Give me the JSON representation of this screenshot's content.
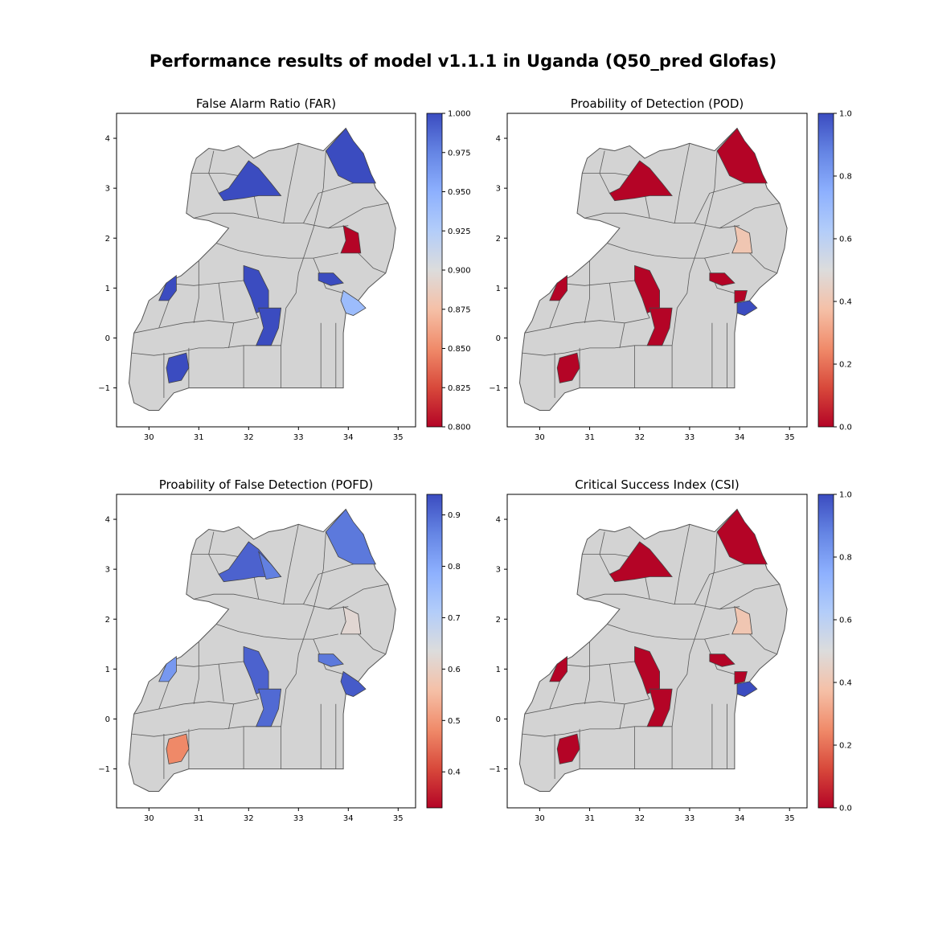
{
  "figure": {
    "title": "Performance results of model v1.1.1 in Uganda (Q50_pred Glofas)"
  },
  "axes_common": {
    "xticks": [
      "30",
      "31",
      "32",
      "33",
      "34",
      "35"
    ],
    "yticks": [
      "4",
      "3",
      "2",
      "1",
      "0",
      "−1"
    ],
    "xlim": [
      29.35,
      35.35
    ],
    "ylim": [
      -1.78,
      4.5
    ],
    "background_color": "#d3d3d3",
    "border_color": "#555555"
  },
  "chart_data": [
    {
      "type": "choropleth",
      "title": "False Alarm Ratio (FAR)",
      "colormap": "coolwarm_r",
      "colorbar": {
        "min": 0.8,
        "max": 1.0,
        "ticks": [
          "1.000",
          "0.975",
          "0.950",
          "0.925",
          "0.900",
          "0.875",
          "0.850",
          "0.825",
          "0.800"
        ]
      },
      "regions": [
        {
          "region": "north-east",
          "value": 1.0
        },
        {
          "region": "north-central",
          "value": 1.0
        },
        {
          "region": "east-north",
          "value": 0.8
        },
        {
          "region": "west",
          "value": 1.0
        },
        {
          "region": "central",
          "value": 1.0
        },
        {
          "region": "central-south",
          "value": 1.0
        },
        {
          "region": "east",
          "value": 1.0
        },
        {
          "region": "east-south",
          "value": 0.94
        },
        {
          "region": "south-west",
          "value": 1.0
        }
      ]
    },
    {
      "type": "choropleth",
      "title": "Proability of Detection (POD)",
      "colormap": "coolwarm_r",
      "colorbar": {
        "min": 0.0,
        "max": 1.0,
        "ticks": [
          "1.0",
          "0.8",
          "0.6",
          "0.4",
          "0.2",
          "0.0"
        ]
      },
      "regions": [
        {
          "region": "north-east",
          "value": 0.0
        },
        {
          "region": "north-central",
          "value": 0.0
        },
        {
          "region": "east-north",
          "value": 0.4
        },
        {
          "region": "west",
          "value": 0.0
        },
        {
          "region": "central",
          "value": 0.0
        },
        {
          "region": "central-south",
          "value": 0.0
        },
        {
          "region": "east",
          "value": 0.0
        },
        {
          "region": "east-south-a",
          "value": 0.0
        },
        {
          "region": "east-south-b",
          "value": 1.0
        },
        {
          "region": "south-west",
          "value": 0.0
        }
      ]
    },
    {
      "type": "choropleth",
      "title": "Proability of False Detection (POFD)",
      "colormap": "coolwarm_r",
      "colorbar": {
        "min": 0.33,
        "max": 0.94,
        "ticks": [
          "0.9",
          "0.8",
          "0.7",
          "0.6",
          "0.5",
          "0.4"
        ]
      },
      "regions": [
        {
          "region": "north-east",
          "value": 0.88
        },
        {
          "region": "north-central",
          "value": 0.91
        },
        {
          "region": "north-central-b",
          "value": 0.87
        },
        {
          "region": "east-north",
          "value": 0.62
        },
        {
          "region": "west",
          "value": 0.83
        },
        {
          "region": "central",
          "value": 0.91
        },
        {
          "region": "central-south",
          "value": 0.9
        },
        {
          "region": "east",
          "value": 0.88
        },
        {
          "region": "east-south",
          "value": 0.92
        },
        {
          "region": "south-west",
          "value": 0.48
        }
      ]
    },
    {
      "type": "choropleth",
      "title": "Critical Success Index (CSI)",
      "colormap": "coolwarm_r",
      "colorbar": {
        "min": 0.0,
        "max": 1.0,
        "ticks": [
          "1.0",
          "0.8",
          "0.6",
          "0.4",
          "0.2",
          "0.0"
        ]
      },
      "regions": [
        {
          "region": "north-east",
          "value": 0.0
        },
        {
          "region": "north-central",
          "value": 0.0
        },
        {
          "region": "east-north",
          "value": 0.4
        },
        {
          "region": "west",
          "value": 0.0
        },
        {
          "region": "central",
          "value": 0.0
        },
        {
          "region": "central-south",
          "value": 0.0
        },
        {
          "region": "east",
          "value": 0.0
        },
        {
          "region": "east-south-a",
          "value": 0.0
        },
        {
          "region": "east-south-b",
          "value": 1.0
        },
        {
          "region": "south-west",
          "value": 0.0
        }
      ]
    }
  ]
}
